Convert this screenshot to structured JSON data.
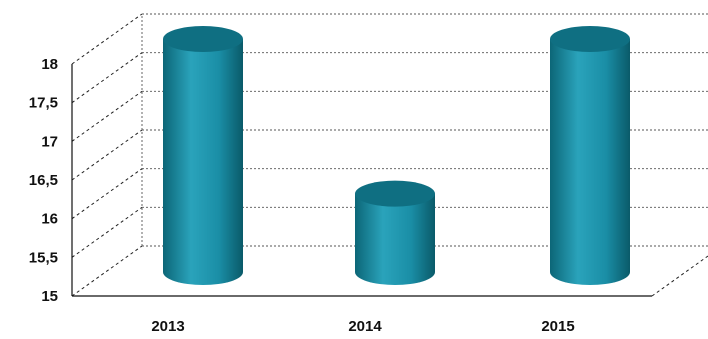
{
  "chart_data": {
    "type": "bar",
    "style": "3d-cylinder",
    "categories": [
      "2013",
      "2014",
      "2015"
    ],
    "values": [
      18.0,
      16.0,
      18.0
    ],
    "ylim": [
      15,
      18
    ],
    "yticks": [
      "15",
      "15,5",
      "16",
      "16,5",
      "17",
      "17,5",
      "18"
    ],
    "grid": true,
    "bar_color": "#1b8fa6",
    "bar_top_color": "#0f6f82"
  }
}
